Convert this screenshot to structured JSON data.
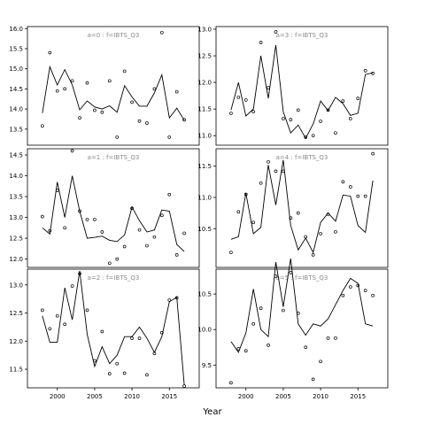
{
  "xlabel": "Year",
  "colors": {
    "line": "#000000",
    "text": "#8a8a8a",
    "axis": "#000000"
  },
  "chart_data": [
    {
      "type": "line",
      "title": "a=0 : f=IBTS_Q3",
      "xlim": [
        1996,
        2019
      ],
      "ylim": [
        13.1,
        16.05
      ],
      "yticks": [
        "13.5",
        "14.0",
        "14.5",
        "15.0",
        "15.5",
        "16.0"
      ],
      "xticks": [],
      "fit": {
        "x": [
          1998,
          1999,
          2000,
          2001,
          2002,
          2003,
          2004,
          2005,
          2006,
          2007,
          2008,
          2009,
          2010,
          2011,
          2012,
          2013,
          2014,
          2015,
          2016,
          2017
        ],
        "y": [
          13.9,
          15.05,
          14.6,
          14.98,
          14.6,
          13.98,
          14.2,
          14.05,
          14.0,
          14.08,
          13.92,
          14.58,
          14.3,
          14.07,
          14.07,
          14.4,
          14.85,
          13.78,
          14.02,
          13.72
        ]
      },
      "obs": {
        "x": [
          1998,
          1999,
          2000,
          2001,
          2002,
          2003,
          2004,
          2005,
          2006,
          2007,
          2008,
          2009,
          2010,
          2011,
          2012,
          2013,
          2014,
          2015,
          2016,
          2017
        ],
        "y": [
          13.58,
          15.4,
          14.45,
          14.5,
          14.7,
          13.78,
          14.65,
          13.97,
          13.92,
          14.7,
          13.3,
          14.94,
          14.17,
          13.7,
          13.65,
          14.5,
          15.9,
          13.3,
          14.43,
          13.73
        ]
      }
    },
    {
      "type": "line",
      "title": "a=3 : f=IBTS_Q3",
      "xlim": [
        1996,
        2019
      ],
      "ylim": [
        10.82,
        13.05
      ],
      "yticks": [
        "11.0",
        "11.5",
        "12.0",
        "12.5",
        "13.0"
      ],
      "xticks": [],
      "fit": {
        "x": [
          1998,
          1999,
          2000,
          2001,
          2002,
          2003,
          2004,
          2005,
          2006,
          2007,
          2008,
          2009,
          2010,
          2011,
          2012,
          2013,
          2014,
          2015,
          2016,
          2017
        ],
        "y": [
          11.48,
          12.0,
          11.37,
          11.5,
          12.5,
          11.7,
          12.7,
          11.45,
          11.05,
          11.2,
          10.95,
          11.22,
          11.65,
          11.47,
          11.72,
          11.6,
          11.38,
          11.42,
          12.15,
          12.18
        ]
      },
      "obs": {
        "x": [
          1998,
          1999,
          2000,
          2001,
          2002,
          2003,
          2004,
          2005,
          2006,
          2007,
          2008,
          2009,
          2010,
          2011,
          2012,
          2013,
          2014,
          2015,
          2016,
          2017
        ],
        "y": [
          11.42,
          11.72,
          11.67,
          11.45,
          12.75,
          11.9,
          12.95,
          11.32,
          11.3,
          11.48,
          10.97,
          11.0,
          11.27,
          11.48,
          11.05,
          11.65,
          11.32,
          11.7,
          12.22,
          12.17
        ]
      }
    },
    {
      "type": "line",
      "title": "a=1 : f=IBTS_Q3",
      "xlim": [
        1996,
        2019
      ],
      "ylim": [
        11.8,
        14.65
      ],
      "yticks": [
        "12.0",
        "12.5",
        "13.0",
        "13.5",
        "14.0",
        "14.5"
      ],
      "xticks": [],
      "fit": {
        "x": [
          1998,
          1999,
          2000,
          2001,
          2002,
          2003,
          2004,
          2005,
          2006,
          2007,
          2008,
          2009,
          2010,
          2011,
          2012,
          2013,
          2014,
          2015,
          2016,
          2017
        ],
        "y": [
          12.75,
          12.6,
          13.85,
          13.0,
          14.0,
          13.15,
          12.5,
          12.52,
          12.55,
          12.45,
          12.42,
          12.58,
          13.25,
          12.92,
          12.65,
          12.7,
          13.18,
          13.15,
          12.35,
          12.18
        ]
      },
      "obs": {
        "x": [
          1998,
          1999,
          2000,
          2001,
          2002,
          2003,
          2004,
          2005,
          2006,
          2007,
          2008,
          2009,
          2010,
          2011,
          2012,
          2013,
          2014,
          2015,
          2016,
          2017
        ],
        "y": [
          13.02,
          12.68,
          13.65,
          12.75,
          14.6,
          13.15,
          12.95,
          12.95,
          12.65,
          11.9,
          12.0,
          12.3,
          13.22,
          12.7,
          12.32,
          12.53,
          13.05,
          13.55,
          12.1,
          12.62
        ]
      }
    },
    {
      "type": "line",
      "title": "a=4 : f=IBTS_Q3",
      "xlim": [
        1996,
        2019
      ],
      "ylim": [
        9.88,
        11.78
      ],
      "yticks": [
        "10.5",
        "11.0",
        "11.5"
      ],
      "xticks": [],
      "fit": {
        "x": [
          1998,
          1999,
          2000,
          2001,
          2002,
          2003,
          2004,
          2005,
          2006,
          2007,
          2008,
          2009,
          2010,
          2011,
          2012,
          2013,
          2014,
          2015,
          2016,
          2017
        ],
        "y": [
          10.33,
          10.37,
          11.07,
          10.42,
          10.52,
          11.52,
          10.88,
          11.6,
          10.55,
          10.16,
          10.35,
          10.12,
          10.6,
          10.75,
          10.62,
          11.04,
          11.02,
          10.55,
          10.44,
          11.27
        ]
      },
      "obs": {
        "x": [
          1998,
          1999,
          2000,
          2001,
          2002,
          2003,
          2004,
          2005,
          2006,
          2007,
          2008,
          2009,
          2010,
          2011,
          2012,
          2013,
          2014,
          2015,
          2016,
          2017
        ],
        "y": [
          10.12,
          10.77,
          11.05,
          10.6,
          11.23,
          11.57,
          11.42,
          11.42,
          10.67,
          10.75,
          10.37,
          10.08,
          10.42,
          10.73,
          10.45,
          11.25,
          11.17,
          11.02,
          11.02,
          11.7
        ]
      }
    },
    {
      "type": "line",
      "title": "a=2 : f=IBTS_Q3",
      "xlim": [
        1996,
        2019
      ],
      "ylim": [
        11.17,
        13.28
      ],
      "yticks": [
        "11.5",
        "12.0",
        "12.5",
        "13.0"
      ],
      "xticks": [
        "2000",
        "2005",
        "2010",
        "2015"
      ],
      "fit": {
        "x": [
          1998,
          1999,
          2000,
          2001,
          2002,
          2003,
          2004,
          2005,
          2006,
          2007,
          2008,
          2009,
          2010,
          2011,
          2012,
          2013,
          2014,
          2015,
          2016,
          2017
        ],
        "y": [
          12.45,
          11.98,
          11.98,
          12.95,
          12.38,
          13.25,
          12.12,
          11.55,
          11.9,
          11.6,
          11.75,
          12.08,
          12.08,
          12.25,
          12.05,
          11.8,
          12.08,
          12.7,
          12.78,
          11.22
        ]
      },
      "obs": {
        "x": [
          1998,
          1999,
          2000,
          2001,
          2002,
          2003,
          2004,
          2005,
          2006,
          2007,
          2008,
          2009,
          2010,
          2011,
          2012,
          2013,
          2014,
          2015,
          2016,
          2017
        ],
        "y": [
          12.55,
          12.22,
          12.45,
          12.3,
          12.98,
          13.2,
          12.55,
          11.65,
          12.17,
          11.42,
          11.6,
          11.43,
          12.05,
          12.05,
          11.4,
          11.78,
          12.15,
          12.73,
          12.77,
          11.2
        ]
      }
    },
    {
      "type": "line",
      "title": "a=5 : f=IBTS_Q3",
      "xlim": [
        1996,
        2019
      ],
      "ylim": [
        9.18,
        10.85
      ],
      "yticks": [
        "9.5",
        "10.0",
        "10.5"
      ],
      "xticks": [
        "2000",
        "2005",
        "2010",
        "2015"
      ],
      "fit": {
        "x": [
          1998,
          1999,
          2000,
          2001,
          2002,
          2003,
          2004,
          2005,
          2006,
          2007,
          2008,
          2009,
          2010,
          2011,
          2012,
          2013,
          2014,
          2015,
          2016,
          2017
        ],
        "y": [
          9.83,
          9.68,
          9.95,
          10.57,
          10.0,
          9.9,
          10.95,
          10.32,
          11.0,
          10.08,
          9.92,
          10.08,
          10.05,
          10.15,
          10.35,
          10.55,
          10.72,
          10.65,
          10.08,
          10.05
        ]
      },
      "obs": {
        "x": [
          1998,
          1999,
          2000,
          2001,
          2002,
          2003,
          2004,
          2005,
          2006,
          2007,
          2008,
          2009,
          2010,
          2011,
          2012,
          2013,
          2014,
          2015,
          2016,
          2017
        ],
        "y": [
          9.25,
          9.73,
          9.7,
          10.08,
          10.3,
          9.78,
          10.75,
          10.27,
          10.8,
          10.23,
          9.75,
          9.3,
          9.55,
          9.88,
          9.88,
          10.48,
          10.6,
          10.62,
          10.55,
          10.48
        ]
      }
    }
  ]
}
